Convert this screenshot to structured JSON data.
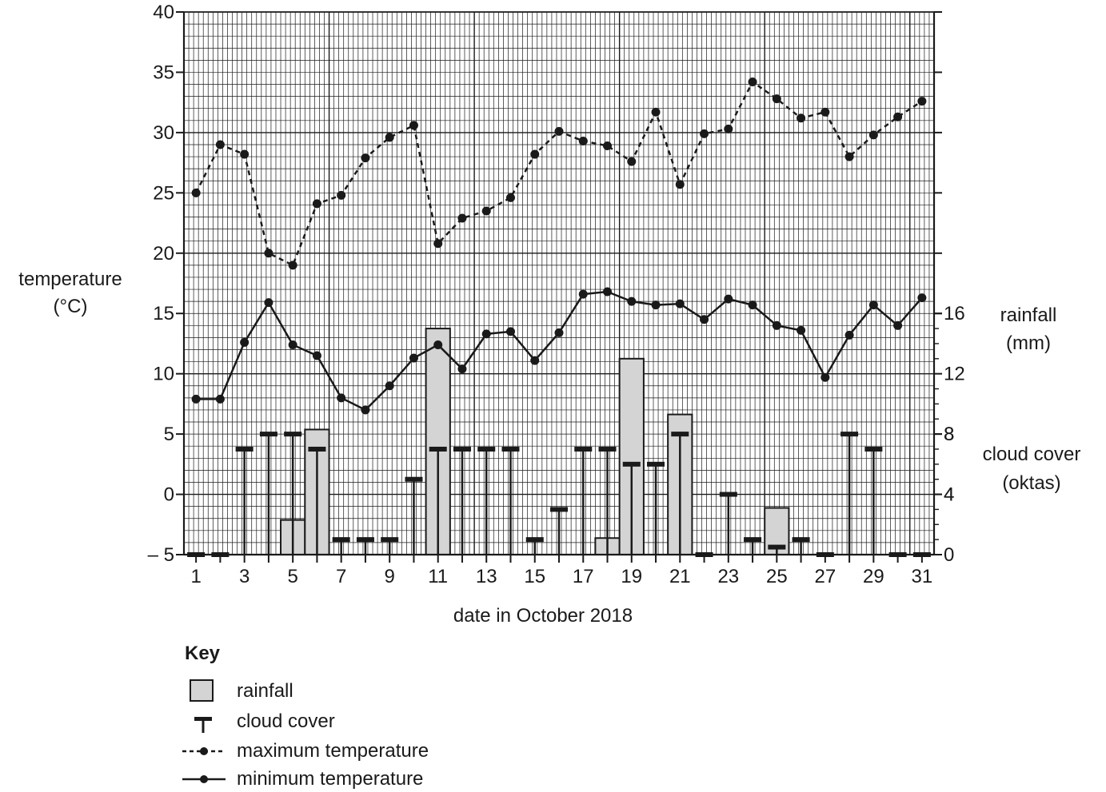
{
  "chart_data": {
    "type": "line",
    "categories_label": "date in October 2018",
    "x": [
      1,
      2,
      3,
      4,
      5,
      6,
      7,
      8,
      9,
      10,
      11,
      12,
      13,
      14,
      15,
      16,
      17,
      18,
      19,
      20,
      21,
      22,
      23,
      24,
      25,
      26,
      27,
      28,
      29,
      30,
      31
    ],
    "xticks": [
      "1",
      "3",
      "5",
      "7",
      "9",
      "11",
      "13",
      "15",
      "17",
      "19",
      "21",
      "23",
      "25",
      "27",
      "29",
      "31"
    ],
    "xlabel": "date in October 2018",
    "left_axis": {
      "label_line1": "temperature",
      "label_line2": "(°C)",
      "range": [
        -5,
        40
      ],
      "ticks": [
        "– 5",
        "0",
        "5",
        "10",
        "15",
        "20",
        "25",
        "30",
        "35",
        "40"
      ],
      "tick_values": [
        -5,
        0,
        5,
        10,
        15,
        20,
        25,
        30,
        35,
        40
      ]
    },
    "rainfall_axis": {
      "label_line1": "rainfall",
      "label_line2": "(mm)",
      "range": [
        0,
        16
      ],
      "ticks": [
        "0",
        "4",
        "8",
        "12",
        "16"
      ],
      "tick_values": [
        0,
        4,
        8,
        12,
        16
      ]
    },
    "cloud_axis": {
      "label_line1": "cloud cover",
      "label_line2": "(oktas)",
      "range": [
        0,
        8
      ],
      "ticks": [
        "0",
        "4",
        "8"
      ],
      "tick_values": [
        0,
        4,
        8
      ]
    },
    "series": [
      {
        "name": "maximum temperature",
        "style": "dashed",
        "color": "#1a1a1a",
        "values": [
          25.0,
          29.0,
          28.2,
          20.0,
          19.0,
          24.1,
          24.8,
          27.9,
          29.6,
          30.6,
          20.8,
          22.9,
          23.5,
          24.6,
          28.2,
          30.1,
          29.3,
          28.9,
          27.6,
          31.7,
          25.7,
          29.9,
          30.3,
          34.2,
          32.8,
          31.2,
          31.7,
          28.0,
          29.8,
          31.3,
          32.6
        ]
      },
      {
        "name": "minimum temperature",
        "style": "solid",
        "color": "#1a1a1a",
        "values": [
          7.9,
          7.9,
          12.6,
          15.9,
          12.4,
          11.5,
          8.0,
          7.0,
          9.0,
          11.3,
          12.4,
          10.4,
          13.3,
          13.5,
          11.1,
          13.4,
          16.6,
          16.8,
          16.0,
          15.7,
          15.8,
          14.5,
          16.2,
          15.7,
          14.0,
          13.6,
          9.7,
          13.2,
          15.7,
          14.0,
          16.3
        ]
      }
    ],
    "rainfall": {
      "name": "rainfall",
      "unit": "mm",
      "bar_fill": "#d4d4d4",
      "values": [
        0,
        0,
        0,
        0,
        2.3,
        8.3,
        0,
        0,
        0,
        0,
        15.0,
        0,
        0,
        0,
        0,
        0,
        0,
        1.1,
        13.0,
        0,
        9.3,
        0,
        0,
        0,
        3.1,
        0,
        0,
        0,
        0,
        0,
        0
      ]
    },
    "cloud_cover": {
      "name": "cloud cover",
      "unit": "oktas",
      "values": [
        0,
        0,
        7,
        8,
        8,
        7,
        1,
        1,
        1,
        5,
        7,
        7,
        7,
        7,
        1,
        3,
        7,
        7,
        6,
        6,
        8,
        0,
        4,
        1,
        0.5,
        1,
        0,
        8,
        7,
        0,
        0
      ]
    },
    "grid": true
  },
  "key": {
    "title": "Key",
    "items": [
      {
        "label": "rainfall",
        "symbol": "rainfall-swatch-icon"
      },
      {
        "label": "cloud cover",
        "symbol": "cloud-cover-icon"
      },
      {
        "label": "maximum temperature",
        "symbol": "dashed-line-dot-icon"
      },
      {
        "label": "minimum temperature",
        "symbol": "solid-line-dot-icon"
      }
    ]
  }
}
